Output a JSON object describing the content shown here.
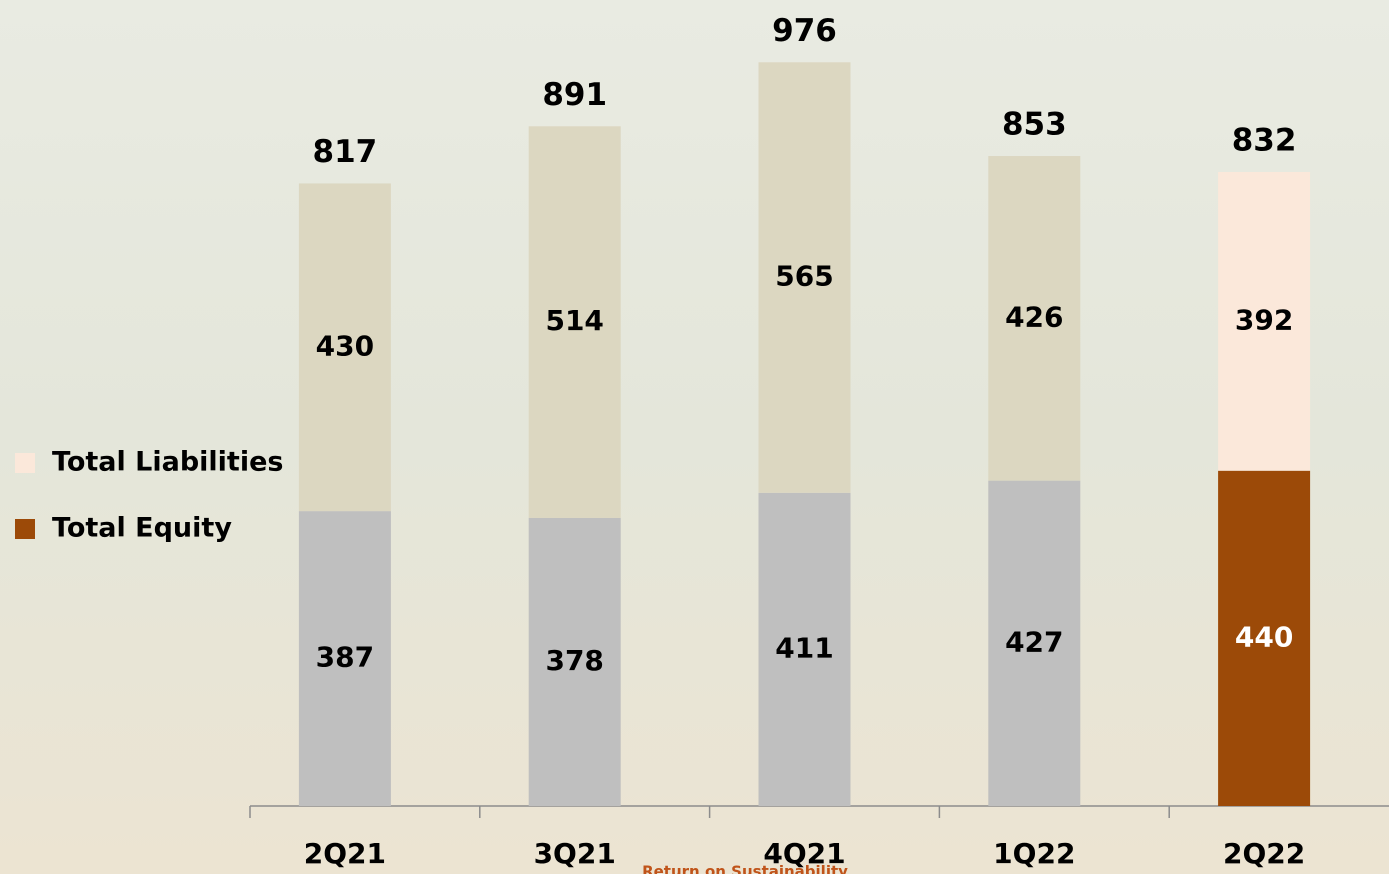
{
  "chart_data": {
    "type": "stacked_bar",
    "categories": [
      "2Q21",
      "3Q21",
      "4Q21",
      "1Q22",
      "2Q22"
    ],
    "series": [
      {
        "name": "Total Equity",
        "color": "#9c4a08",
        "values": [
          387,
          378,
          411,
          427,
          440
        ],
        "point_colors": [
          "#bfbfbf",
          "#bfbfbf",
          "#bfbfbf",
          "#bfbfbf",
          "#9c4a08"
        ]
      },
      {
        "name": "Total Liabilities",
        "color": "#fbe8da",
        "values": [
          430,
          514,
          565,
          426,
          392
        ],
        "point_colors": [
          "#dcd7c1",
          "#dcd7c1",
          "#dcd7c1",
          "#dcd7c1",
          "#fbe8da"
        ]
      }
    ],
    "totals": [
      817,
      891,
      976,
      853,
      832
    ],
    "ylim": [
      0,
      1000
    ],
    "legend": "left",
    "footer": "Return on Sustainability"
  }
}
